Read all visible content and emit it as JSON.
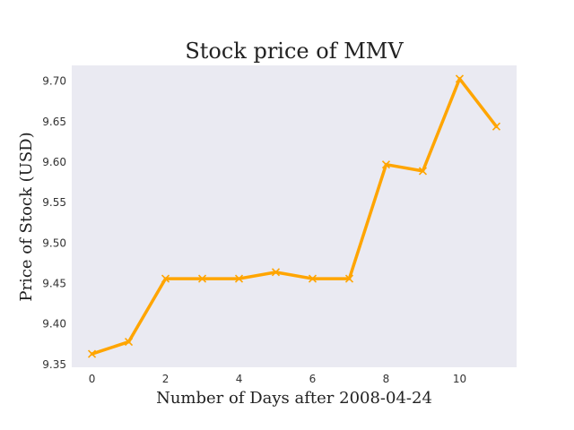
{
  "chart_data": {
    "type": "line",
    "title": "Stock price of MMV",
    "xlabel": "Number of Days after 2008-04-24",
    "ylabel": "Price of Stock (USD)",
    "x": [
      0,
      1,
      2,
      3,
      4,
      5,
      6,
      7,
      8,
      9,
      10,
      11
    ],
    "series": [
      {
        "values": [
          9.363,
          9.378,
          9.456,
          9.456,
          9.456,
          9.464,
          9.456,
          9.456,
          9.597,
          9.589,
          9.703,
          9.644
        ]
      }
    ],
    "xlim": [
      -0.55,
      11.55
    ],
    "ylim": [
      9.3465,
      9.7195
    ],
    "xticks": [
      0,
      2,
      4,
      6,
      8,
      10
    ],
    "yticks": [
      "9.35",
      "9.40",
      "9.45",
      "9.50",
      "9.55",
      "9.60",
      "9.65",
      "9.70"
    ],
    "grid": false,
    "marker": "x",
    "colors": {
      "line": "#FFA500",
      "plot_background": "#EAEAF2"
    }
  }
}
